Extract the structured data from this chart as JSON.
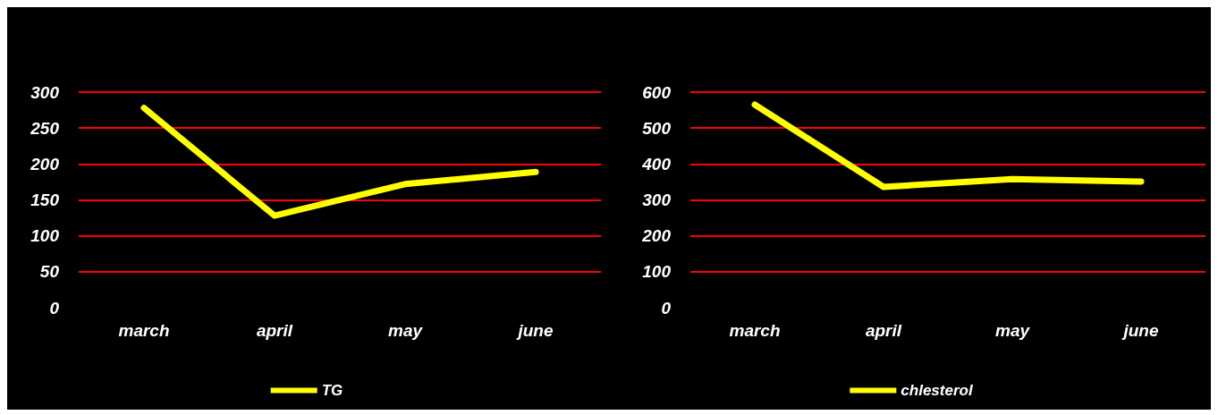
{
  "chart_data": [
    {
      "type": "line",
      "categories": [
        "march",
        "april",
        "may",
        "june"
      ],
      "series": [
        {
          "name": "TG",
          "color": "#ffff00",
          "values": [
            278,
            128,
            172,
            189
          ]
        }
      ],
      "ylim": [
        0,
        300
      ],
      "yticks": [
        0,
        50,
        100,
        150,
        200,
        250,
        300
      ],
      "grid": "y",
      "legend": "bottom",
      "marker": "none",
      "line_style": "solid"
    },
    {
      "type": "line",
      "categories": [
        "march",
        "april",
        "may",
        "june"
      ],
      "series": [
        {
          "name": "chlesterol",
          "color": "#ffff00",
          "values": [
            565,
            336,
            358,
            351
          ]
        }
      ],
      "ylim": [
        0,
        600
      ],
      "yticks": [
        0,
        100,
        200,
        300,
        400,
        500,
        600
      ],
      "grid": "y",
      "legend": "bottom",
      "marker": "none",
      "line_style": "solid"
    }
  ]
}
